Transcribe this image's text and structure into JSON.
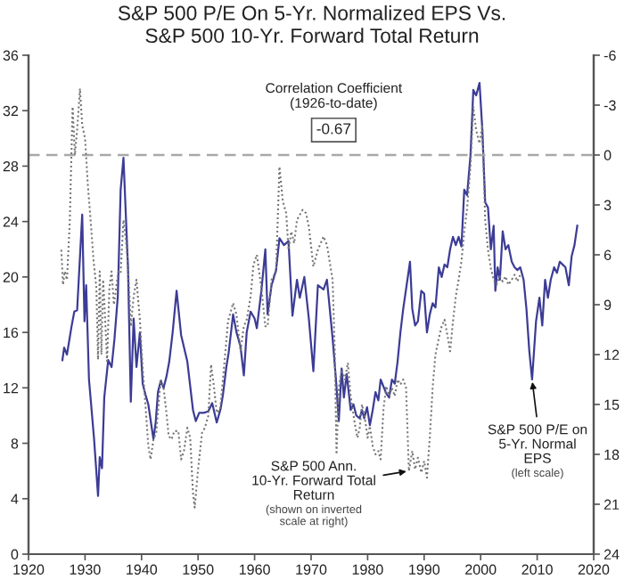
{
  "chart_data": {
    "type": "line",
    "title": "S&P 500 P/E On 5-Yr. Normalized EPS Vs.\nS&P 500 10-Yr. Forward Total Return",
    "xlim": [
      1920,
      2020
    ],
    "xticks": [
      1920,
      1930,
      1940,
      1950,
      1960,
      1970,
      1980,
      1990,
      2000,
      2010,
      2020
    ],
    "ylim": [
      0,
      36
    ],
    "yticks": [
      0,
      4,
      8,
      12,
      16,
      20,
      24,
      28,
      32,
      36
    ],
    "y2lim": [
      24,
      -6
    ],
    "y2ticks": [
      -6,
      -3,
      0,
      3,
      6,
      9,
      12,
      15,
      18,
      21,
      24
    ],
    "series": [
      {
        "color": "#3c3c96",
        "line_style": "solid",
        "x": [
          1926.0,
          1926.3,
          1926.8,
          1927.6,
          1928.1,
          1928.6,
          1929.5,
          1929.9,
          1930.2,
          1930.7,
          1931.6,
          1932.3,
          1932.6,
          1933.0,
          1933.4,
          1934.1,
          1934.7,
          1935.2,
          1935.8,
          1936.3,
          1936.8,
          1937.6,
          1938.1,
          1938.6,
          1939.1,
          1939.7,
          1940.2,
          1940.7,
          1941.2,
          1941.7,
          1942.1,
          1942.5,
          1942.9,
          1943.4,
          1943.9,
          1944.4,
          1944.9,
          1945.5,
          1946.2,
          1947.0,
          1948.1,
          1949.1,
          1949.6,
          1950.2,
          1951.0,
          1951.8,
          1952.5,
          1953.3,
          1954.0,
          1954.4,
          1955.0,
          1955.4,
          1956.2,
          1956.8,
          1957.5,
          1958.1,
          1958.6,
          1959.3,
          1960.0,
          1960.4,
          1961.2,
          1961.9,
          1962.3,
          1963.0,
          1963.8,
          1964.4,
          1965.2,
          1966.0,
          1966.7,
          1967.5,
          1968.0,
          1968.8,
          1969.6,
          1970.4,
          1971.2,
          1972.2,
          1972.8,
          1973.8,
          1974.4,
          1974.9,
          1975.4,
          1975.8,
          1976.3,
          1977.0,
          1977.5,
          1978.0,
          1978.6,
          1979.0,
          1979.4,
          1979.9,
          1980.4,
          1980.9,
          1981.4,
          1981.9,
          1982.3,
          1983.3,
          1983.8,
          1984.3,
          1984.8,
          1985.3,
          1985.8,
          1986.3,
          1987.5,
          1987.9,
          1988.4,
          1988.9,
          1989.5,
          1990.0,
          1990.5,
          1991.0,
          1991.5,
          1992.0,
          1992.6,
          1993.1,
          1993.6,
          1994.1,
          1994.6,
          1995.1,
          1995.6,
          1996.1,
          1996.6,
          1997.1,
          1997.6,
          1998.2,
          1998.7,
          1999.2,
          1999.8,
          2000.3,
          2000.8,
          2001.3,
          2001.8,
          2002.3,
          2002.6,
          2003.0,
          2003.4,
          2003.9,
          2004.4,
          2004.9,
          2005.5,
          2006.0,
          2006.5,
          2007.0,
          2007.6,
          2008.1,
          2008.6,
          2009.1,
          2009.8,
          2010.4,
          2010.9,
          2011.4,
          2011.9,
          2012.4,
          2013.0,
          2013.5,
          2014.0,
          2014.5,
          2015.0,
          2015.6,
          2016.1,
          2016.6,
          2017.1
        ],
        "values": [
          14.0,
          14.9,
          14.4,
          16.4,
          17.5,
          17.6,
          24.5,
          16.8,
          19.4,
          12.6,
          8.3,
          4.2,
          7.0,
          6.2,
          11.3,
          14.0,
          13.5,
          15.5,
          18.6,
          26.3,
          28.6,
          20.7,
          11.0,
          17.0,
          13.5,
          16.0,
          12.3,
          11.5,
          10.8,
          9.4,
          8.3,
          9.5,
          11.7,
          12.5,
          12.0,
          12.8,
          13.9,
          16.0,
          19.0,
          15.8,
          13.9,
          10.4,
          9.6,
          10.2,
          10.2,
          10.3,
          10.9,
          9.5,
          10.5,
          11.5,
          13.5,
          14.5,
          17.3,
          16.0,
          15.0,
          12.9,
          16.0,
          17.5,
          17.0,
          16.3,
          19.0,
          22.0,
          17.3,
          19.4,
          20.5,
          22.8,
          22.3,
          22.6,
          17.2,
          19.8,
          18.5,
          20.0,
          17.0,
          13.2,
          19.4,
          19.1,
          19.8,
          15.6,
          12.6,
          9.6,
          13.4,
          11.3,
          13.0,
          10.4,
          10.8,
          10.0,
          9.8,
          10.4,
          9.8,
          10.6,
          9.3,
          10.4,
          11.7,
          11.1,
          12.6,
          11.6,
          11.3,
          12.6,
          12.3,
          13.9,
          16.0,
          17.7,
          21.1,
          17.7,
          16.5,
          16.8,
          19.0,
          18.8,
          16.0,
          17.3,
          18.1,
          17.8,
          20.7,
          20.0,
          20.9,
          20.7,
          22.0,
          22.9,
          22.3,
          22.9,
          22.2,
          26.3,
          25.9,
          28.8,
          33.5,
          33.1,
          34.0,
          30.6,
          25.4,
          25.0,
          22.0,
          23.7,
          19.0,
          20.7,
          19.8,
          23.3,
          22.0,
          22.3,
          21.1,
          20.7,
          20.5,
          20.7,
          19.8,
          17.7,
          14.7,
          12.6,
          16.8,
          18.5,
          16.5,
          19.8,
          18.5,
          19.8,
          20.7,
          20.3,
          21.1,
          20.9,
          20.7,
          19.4,
          21.5,
          22.3,
          23.7
        ]
      },
      {
        "color": "#767676",
        "line_style": "dotted",
        "axis": "y2",
        "x": [
          1925.8,
          1926.1,
          1926.4,
          1926.8,
          1927.3,
          1927.8,
          1928.2,
          1928.6,
          1929.1,
          1929.5,
          1930.0,
          1930.5,
          1931.0,
          1931.5,
          1932.0,
          1932.3,
          1932.6,
          1932.9,
          1933.2,
          1933.5,
          1933.9,
          1934.3,
          1934.7,
          1935.1,
          1935.5,
          1935.9,
          1936.3,
          1936.8,
          1937.2,
          1937.6,
          1938.1,
          1938.6,
          1939.1,
          1939.7,
          1940.2,
          1940.7,
          1941.2,
          1941.6,
          1942.1,
          1942.6,
          1943.1,
          1943.4,
          1943.9,
          1944.4,
          1944.8,
          1945.3,
          1945.8,
          1946.5,
          1947.0,
          1947.5,
          1948.1,
          1948.6,
          1949.1,
          1949.4,
          1950.0,
          1950.7,
          1951.2,
          1951.8,
          1952.3,
          1952.8,
          1953.3,
          1953.9,
          1954.4,
          1955.3,
          1956.2,
          1956.8,
          1957.5,
          1958.1,
          1958.6,
          1959.3,
          1959.8,
          1960.4,
          1961.2,
          1961.9,
          1962.3,
          1963.0,
          1963.8,
          1964.4,
          1965.0,
          1965.6,
          1966.0,
          1966.5,
          1967.0,
          1967.5,
          1968.5,
          1969.1,
          1969.6,
          1970.4,
          1971.2,
          1972.2,
          1972.8,
          1973.8,
          1974.2,
          1974.5,
          1974.9,
          1975.4,
          1976.0,
          1976.5,
          1977.0,
          1977.7,
          1978.2,
          1978.6,
          1979.0,
          1979.5,
          1980.0,
          1980.4,
          1980.9,
          1981.4,
          1981.9,
          1982.3,
          1982.8,
          1983.3,
          1983.8,
          1984.3,
          1984.8,
          1985.3,
          1985.8,
          1986.3,
          1986.8,
          1987.3,
          1987.9,
          1988.4,
          1988.9,
          1989.5,
          1990.0,
          1990.5,
          1991.0,
          1991.5,
          1992.0,
          1992.6,
          1993.1,
          1993.6,
          1994.1,
          1994.6,
          1995.1,
          1995.6,
          1996.1,
          1996.6,
          1997.1,
          1997.6,
          1998.2,
          1998.7,
          1999.2,
          1999.8,
          2000.3,
          2000.8,
          2001.3,
          2001.8,
          2002.3,
          2002.8,
          2003.4,
          2003.9,
          2004.4,
          2004.9,
          2005.5,
          2006.0,
          2006.5,
          2007.0
        ],
        "values": [
          5.7,
          7.8,
          7.0,
          7.5,
          4.0,
          -2.9,
          0.0,
          -1.5,
          -4.0,
          -1.8,
          -1.0,
          1.8,
          4.0,
          6.3,
          8.0,
          12.3,
          7.0,
          12.0,
          7.5,
          9.5,
          12.4,
          8.0,
          7.0,
          9.0,
          8.0,
          7.0,
          7.1,
          3.9,
          5.0,
          6.6,
          10.3,
          8.5,
          7.5,
          9.9,
          12.8,
          15.1,
          17.5,
          18.3,
          17.1,
          16.7,
          14.6,
          13.5,
          14.0,
          15.5,
          16.9,
          17.1,
          16.6,
          16.6,
          18.3,
          17.8,
          16.4,
          17.0,
          20.3,
          21.2,
          18.9,
          16.7,
          16.4,
          15.7,
          12.6,
          13.9,
          15.5,
          15.3,
          13.5,
          10.0,
          8.9,
          9.6,
          11.8,
          10.3,
          9.9,
          8.5,
          6.6,
          6.0,
          8.0,
          10.3,
          10.3,
          7.5,
          7.0,
          0.7,
          2.8,
          3.5,
          5.7,
          4.6,
          5.3,
          3.9,
          3.3,
          3.5,
          4.3,
          6.7,
          5.7,
          4.9,
          5.4,
          7.5,
          12.0,
          18.0,
          14.0,
          12.9,
          13.5,
          12.5,
          14.5,
          16.1,
          17.0,
          16.4,
          15.0,
          15.8,
          17.0,
          16.3,
          17.5,
          18.0,
          17.8,
          18.3,
          15.3,
          13.9,
          14.5,
          14.0,
          14.5,
          13.5,
          13.8,
          13.5,
          14.0,
          19.0,
          17.8,
          18.9,
          18.2,
          19.1,
          18.4,
          19.4,
          17.0,
          14.0,
          12.0,
          11.0,
          10.3,
          9.9,
          10.8,
          11.8,
          10.0,
          8.5,
          7.5,
          6.4,
          4.6,
          3.2,
          0.7,
          -2.9,
          -1.5,
          -0.7,
          -1.8,
          3.9,
          5.7,
          6.8,
          7.5,
          7.8,
          7.3,
          7.6,
          7.3,
          7.8,
          7.5,
          7.2,
          7.6,
          7.2
        ]
      }
    ],
    "ref_lines": [
      {
        "axis": "y2",
        "value": 0,
        "color": "#a8a8a8",
        "line_style": "dashed"
      }
    ],
    "annotations": [
      "Correlation Coefficient\n(1926-to-date)",
      "-0.67",
      {
        "text": "S&P 500 P/E on\n5-Yr. Normal\nEPS",
        "x": 2009.1,
        "y": 12.6
      },
      "(left scale)",
      {
        "text": "S&P 500 Ann.\n10-Yr. Forward Total\nReturn",
        "x": 1987.3,
        "y": 6.0
      },
      "(shown on inverted\nscale at right)"
    ]
  }
}
